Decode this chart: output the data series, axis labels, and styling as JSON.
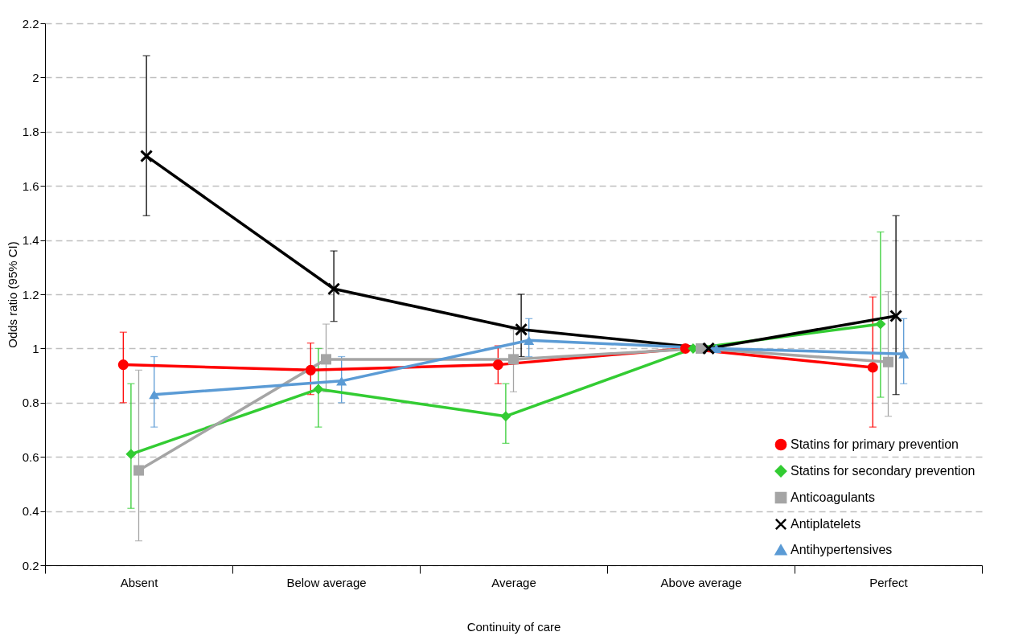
{
  "chart_data": {
    "type": "line",
    "xlabel": "Continuity of care",
    "ylabel": "Odds ratio (95% CI)",
    "categories": [
      "Absent",
      "Below average",
      "Average",
      "Above average",
      "Perfect"
    ],
    "ylim": [
      0.2,
      2.2
    ],
    "yticks": [
      0.2,
      0.4,
      0.6,
      0.8,
      1,
      1.2,
      1.4,
      1.6,
      1.8,
      2,
      2.2
    ],
    "grid": "y",
    "legend": "bottom right",
    "series": [
      {
        "name": "Statins for primary prevention",
        "color": "#ff0000",
        "marker": "circle",
        "values": [
          0.94,
          0.92,
          0.94,
          1.0,
          0.93
        ],
        "errors": [
          [
            0.8,
            1.06
          ],
          [
            0.83,
            1.02
          ],
          [
            0.87,
            1.01
          ],
          null,
          [
            0.71,
            1.19
          ]
        ]
      },
      {
        "name": "Statins for secondary prevention",
        "color": "#33cc33",
        "marker": "diamond",
        "values": [
          0.61,
          0.85,
          0.75,
          1.0,
          1.09
        ],
        "errors": [
          [
            0.41,
            0.87
          ],
          [
            0.71,
            1.0
          ],
          [
            0.65,
            0.87
          ],
          null,
          [
            0.82,
            1.43
          ]
        ]
      },
      {
        "name": "Anticoagulants",
        "color": "#a5a5a5",
        "marker": "square",
        "values": [
          0.55,
          0.96,
          0.96,
          1.0,
          0.95
        ],
        "errors": [
          [
            0.29,
            0.92
          ],
          [
            0.84,
            1.09
          ],
          [
            0.84,
            1.07
          ],
          null,
          [
            0.75,
            1.21
          ]
        ]
      },
      {
        "name": "Antiplatelets",
        "color": "#000000",
        "marker": "cross",
        "values": [
          1.71,
          1.22,
          1.07,
          1.0,
          1.12
        ],
        "errors": [
          [
            1.49,
            2.08
          ],
          [
            1.1,
            1.36
          ],
          [
            0.97,
            1.2
          ],
          null,
          [
            0.83,
            1.49
          ]
        ]
      },
      {
        "name": "Antihypertensives",
        "color": "#5b9bd5",
        "marker": "triangle",
        "values": [
          0.83,
          0.88,
          1.03,
          1.0,
          0.98
        ],
        "errors": [
          [
            0.71,
            0.97
          ],
          [
            0.8,
            0.97
          ],
          [
            0.97,
            1.11
          ],
          null,
          [
            0.87,
            1.11
          ]
        ]
      }
    ]
  }
}
